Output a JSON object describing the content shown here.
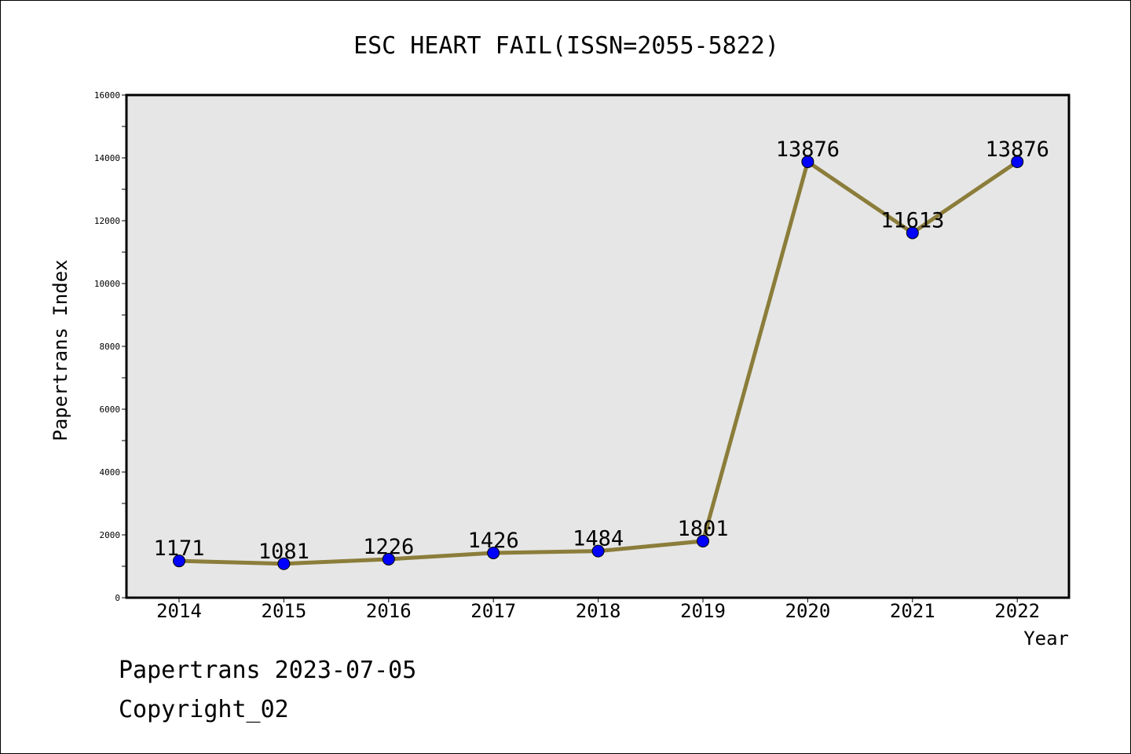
{
  "chart_data": {
    "type": "line",
    "title": "ESC HEART FAIL(ISSN=2055-5822)",
    "xlabel": "Year",
    "ylabel": "Papertrans Index",
    "categories": [
      "2014",
      "2015",
      "2016",
      "2017",
      "2018",
      "2019",
      "2020",
      "2021",
      "2022"
    ],
    "values": [
      1171,
      1081,
      1226,
      1426,
      1484,
      1801,
      13876,
      11613,
      13876
    ],
    "ylim": [
      0,
      16000
    ],
    "yticks": [
      0,
      2000,
      4000,
      6000,
      8000,
      10000,
      12000,
      14000,
      16000
    ],
    "grid": false,
    "line_color": "#8b7d3a",
    "marker_color": "#0000ff",
    "plot_background": "#e6e6e6"
  },
  "footer": {
    "line1": "Papertrans 2023-07-05",
    "line2": "Copyright_02"
  }
}
